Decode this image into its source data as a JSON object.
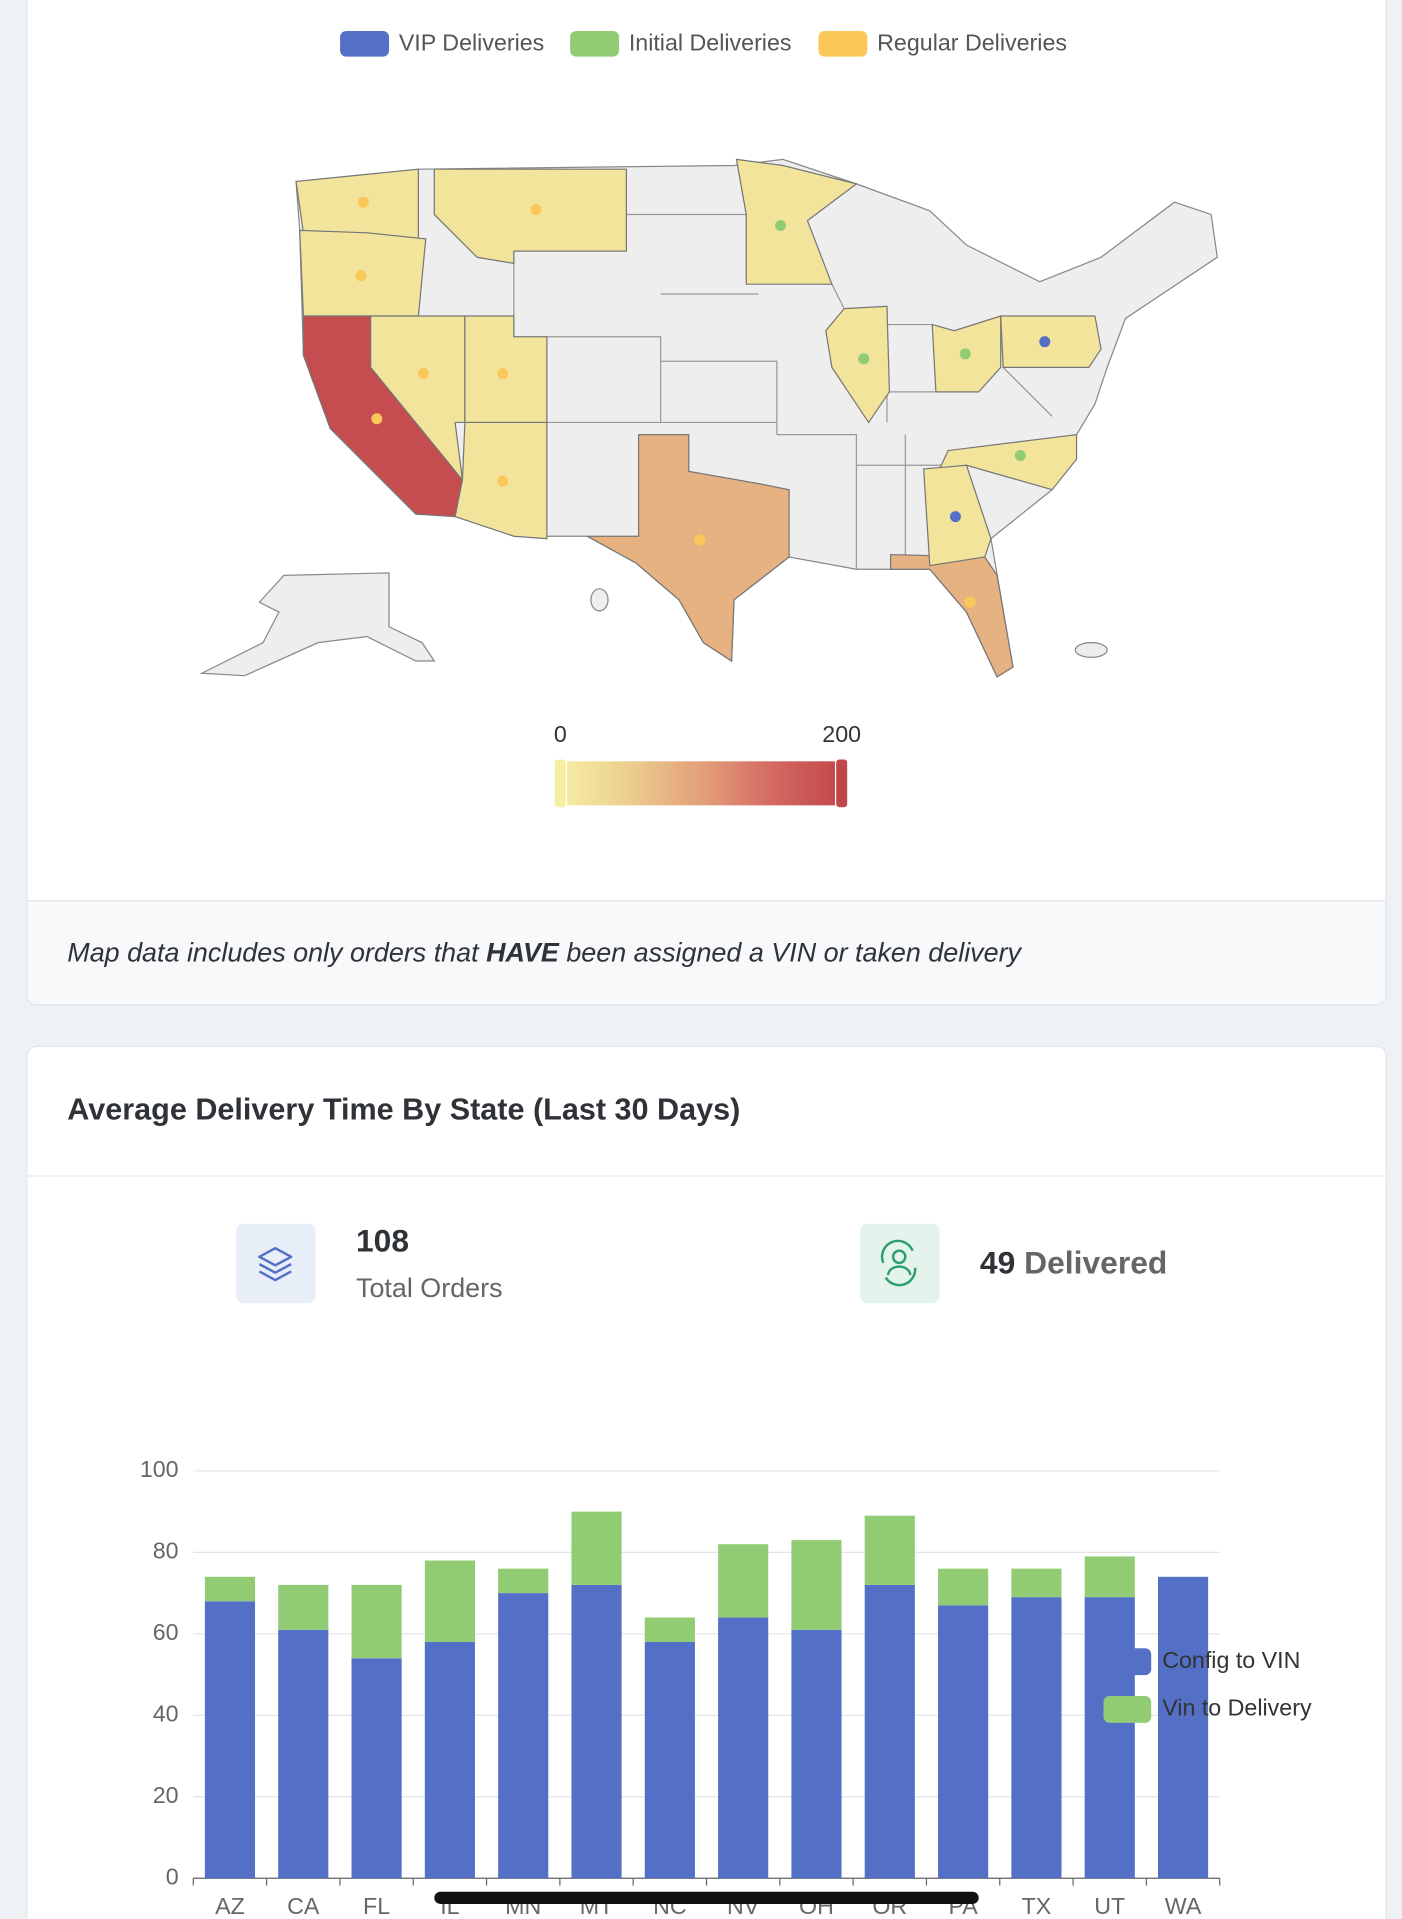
{
  "chart_data": [
    {
      "type": "choropleth",
      "series": [
        {
          "name": "VIP Deliveries",
          "color": "#5470c6"
        },
        {
          "name": "Initial Deliveries",
          "color": "#91cc75"
        },
        {
          "name": "Regular Deliveries",
          "color": "#fac858"
        }
      ],
      "values": [
        15,
        15,
        190,
        15,
        15,
        15,
        15,
        80,
        80,
        15,
        15,
        15,
        15,
        15,
        15
      ],
      "marker_series": [
        2,
        2,
        2,
        2,
        2,
        2,
        2,
        2,
        2,
        1,
        1,
        1,
        1,
        0,
        0
      ],
      "colorscale": [
        "#f6eea2",
        "#eccd8e",
        "#e3a07a",
        "#d46a62",
        "#c1464a"
      ],
      "zlim": [
        0,
        200
      ],
      "zticks": [
        0,
        200
      ]
    },
    {
      "type": "bar",
      "stacked": true,
      "categories": [
        "AZ",
        "CA",
        "FL",
        "IL",
        "MN",
        "MT",
        "NC",
        "NV",
        "OH",
        "OR",
        "PA",
        "TX",
        "UT",
        "WA"
      ],
      "series": [
        {
          "name": "Config to VIN",
          "color": "#5470c6",
          "values": [
            68,
            61,
            54,
            58,
            70,
            72,
            58,
            64,
            61,
            72,
            67,
            69,
            69,
            74
          ]
        },
        {
          "name": "Vin to Delivery",
          "color": "#91cc75",
          "values": [
            6,
            11,
            18,
            20,
            6,
            18,
            6,
            18,
            22,
            17,
            9,
            7,
            10,
            0
          ]
        }
      ],
      "ylim": [
        0,
        100
      ],
      "yticks": [
        0,
        20,
        40,
        60,
        80,
        100
      ],
      "grid": true,
      "legend": "right"
    }
  ],
  "map_note": {
    "before": "Map data includes only orders that",
    "emphasis": "HAVE",
    "after": "been assigned a VIN or taken delivery"
  },
  "delivery_card": {
    "title": "Average Delivery Time By State (Last 30 Days)",
    "total_orders": {
      "value": 108,
      "label": "Total Orders"
    },
    "delivered": {
      "value": 49,
      "label": "Delivered"
    }
  }
}
